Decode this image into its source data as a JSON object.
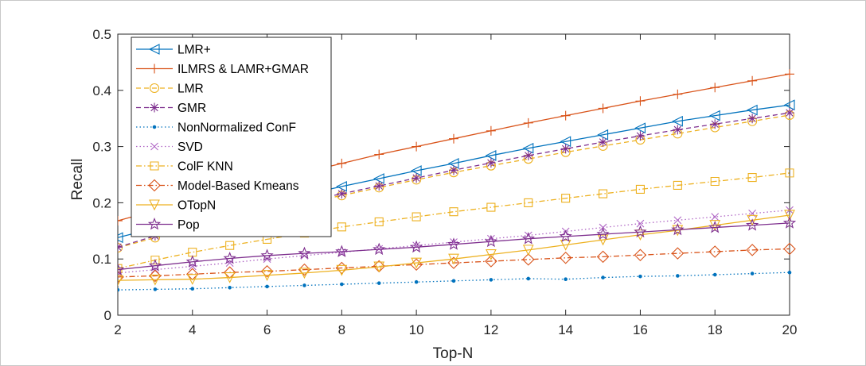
{
  "chart_data": {
    "type": "line",
    "title": "",
    "xlabel": "Top-N",
    "ylabel": "Recall",
    "xlim": [
      2,
      20
    ],
    "ylim": [
      0,
      0.5
    ],
    "xticks": [
      2,
      4,
      6,
      8,
      10,
      12,
      14,
      16,
      18,
      20
    ],
    "yticks": [
      0,
      0.1,
      0.2,
      0.3,
      0.4,
      0.5
    ],
    "xtick_labels": [
      "2",
      "4",
      "6",
      "8",
      "10",
      "12",
      "14",
      "16",
      "18",
      "20"
    ],
    "ytick_labels": [
      "0",
      "0.1",
      "0.2",
      "0.3",
      "0.4",
      "0.5"
    ],
    "grid": false,
    "legend_position": "top-left",
    "x": [
      2,
      3,
      4,
      5,
      6,
      7,
      8,
      9,
      10,
      11,
      12,
      13,
      14,
      15,
      16,
      17,
      18,
      19,
      20
    ],
    "series": [
      {
        "name": "LMR+",
        "color": "#0072BD",
        "marker": "triangle-left",
        "dash": "solid",
        "values": [
          0.138,
          0.155,
          0.171,
          0.186,
          0.2,
          0.214,
          0.229,
          0.243,
          0.257,
          0.27,
          0.284,
          0.297,
          0.309,
          0.321,
          0.333,
          0.345,
          0.355,
          0.365,
          0.374
        ]
      },
      {
        "name": "ILMRS & LAMR+GMAR",
        "color": "#D95319",
        "marker": "plus",
        "dash": "solid",
        "values": [
          0.168,
          0.186,
          0.204,
          0.221,
          0.238,
          0.254,
          0.27,
          0.286,
          0.3,
          0.314,
          0.328,
          0.342,
          0.355,
          0.368,
          0.381,
          0.393,
          0.405,
          0.417,
          0.429
        ]
      },
      {
        "name": "LMR",
        "color": "#EDB120",
        "marker": "circle",
        "dash": "dashed",
        "values": [
          0.12,
          0.138,
          0.154,
          0.17,
          0.185,
          0.199,
          0.213,
          0.227,
          0.241,
          0.254,
          0.266,
          0.278,
          0.29,
          0.301,
          0.312,
          0.323,
          0.334,
          0.345,
          0.356
        ]
      },
      {
        "name": "GMR",
        "color": "#7E2F8E",
        "marker": "asterisk",
        "dash": "dashed",
        "values": [
          0.121,
          0.141,
          0.158,
          0.174,
          0.188,
          0.202,
          0.216,
          0.23,
          0.244,
          0.258,
          0.271,
          0.284,
          0.296,
          0.308,
          0.319,
          0.33,
          0.34,
          0.35,
          0.36
        ]
      },
      {
        "name": "NonNormalized ConF",
        "color": "#0072BD",
        "marker": "dot",
        "dash": "dotted",
        "values": [
          0.045,
          0.046,
          0.047,
          0.049,
          0.051,
          0.053,
          0.055,
          0.057,
          0.059,
          0.061,
          0.063,
          0.065,
          0.064,
          0.067,
          0.069,
          0.07,
          0.072,
          0.074,
          0.076
        ]
      },
      {
        "name": "SVD",
        "color": "#B066C5",
        "marker": "x",
        "dash": "dotted",
        "values": [
          0.075,
          0.081,
          0.087,
          0.093,
          0.1,
          0.106,
          0.112,
          0.118,
          0.124,
          0.13,
          0.136,
          0.142,
          0.149,
          0.156,
          0.163,
          0.169,
          0.175,
          0.181,
          0.187
        ]
      },
      {
        "name": "ColF KNN",
        "color": "#EDB120",
        "marker": "square",
        "dash": "dashdot",
        "values": [
          0.083,
          0.098,
          0.112,
          0.124,
          0.135,
          0.146,
          0.157,
          0.166,
          0.175,
          0.184,
          0.192,
          0.2,
          0.208,
          0.216,
          0.224,
          0.231,
          0.238,
          0.245,
          0.253
        ]
      },
      {
        "name": "Model-Based Kmeans",
        "color": "#D95319",
        "marker": "diamond",
        "dash": "dashdot",
        "values": [
          0.068,
          0.07,
          0.073,
          0.076,
          0.078,
          0.081,
          0.084,
          0.087,
          0.09,
          0.093,
          0.096,
          0.099,
          0.102,
          0.104,
          0.107,
          0.11,
          0.113,
          0.116,
          0.118
        ]
      },
      {
        "name": "OTopN",
        "color": "#EDB120",
        "marker": "triangle-down",
        "dash": "solid",
        "values": [
          0.062,
          0.063,
          0.064,
          0.067,
          0.071,
          0.075,
          0.08,
          0.086,
          0.093,
          0.1,
          0.108,
          0.116,
          0.125,
          0.134,
          0.143,
          0.151,
          0.16,
          0.169,
          0.178
        ]
      },
      {
        "name": "Pop",
        "color": "#7E2F8E",
        "marker": "star",
        "dash": "solid",
        "values": [
          0.081,
          0.088,
          0.095,
          0.101,
          0.106,
          0.11,
          0.113,
          0.117,
          0.121,
          0.126,
          0.131,
          0.136,
          0.14,
          0.144,
          0.148,
          0.152,
          0.156,
          0.16,
          0.164
        ]
      }
    ]
  }
}
